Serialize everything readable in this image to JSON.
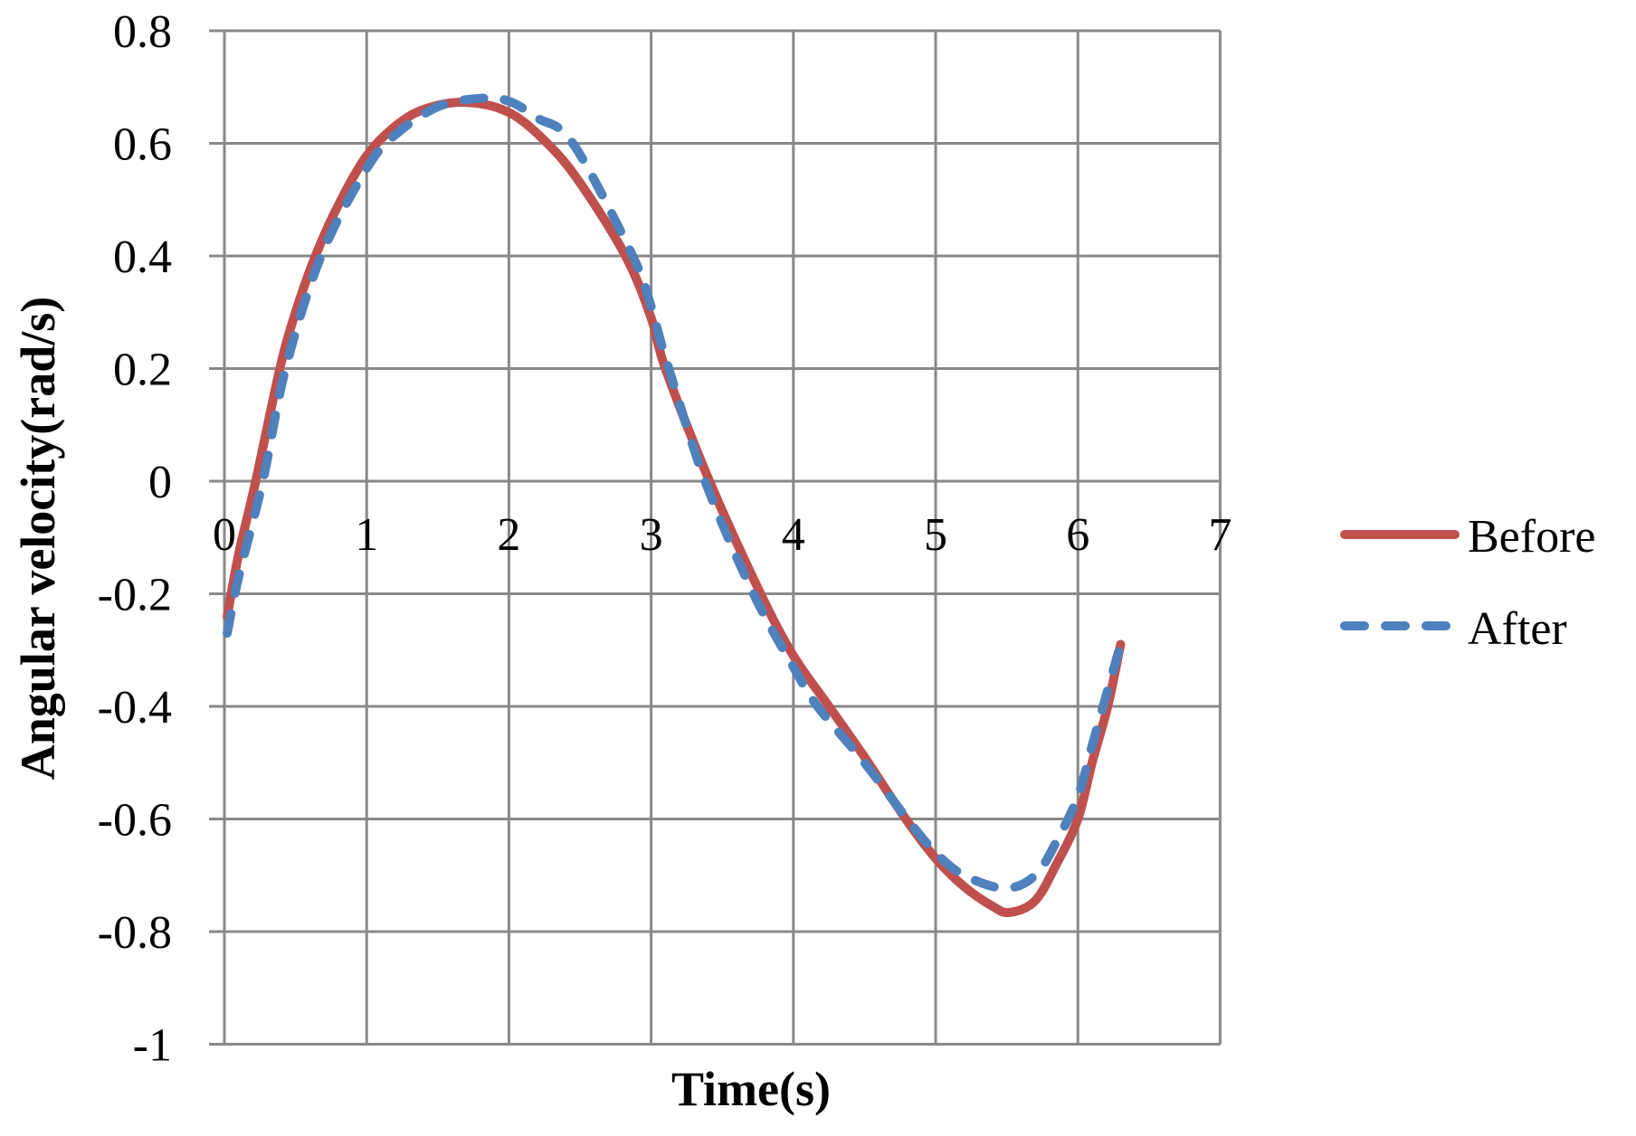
{
  "chart_data": {
    "type": "line",
    "title": "",
    "xlabel": "Time(s)",
    "ylabel": "Angular velocity(rad/s)",
    "xlim": [
      0,
      7
    ],
    "ylim": [
      -1,
      0.8
    ],
    "x_ticks": [
      0,
      1,
      2,
      3,
      4,
      5,
      6,
      7
    ],
    "y_ticks": [
      0.8,
      0.6,
      0.4,
      0.2,
      0,
      -0.2,
      -0.4,
      -0.6,
      -0.8,
      -1
    ],
    "x_tick_labels": [
      "0",
      "1",
      "2",
      "3",
      "4",
      "5",
      "6",
      "7"
    ],
    "y_tick_labels": [
      "0.8",
      "0.6",
      "0.4",
      "0.2",
      "0",
      "-0.2",
      "-0.4",
      "-0.6",
      "-0.8",
      "-1"
    ],
    "grid": true,
    "legend_position": "right",
    "series": [
      {
        "name": "Before",
        "color": "#C0504D",
        "style": "solid",
        "x": [
          0.02,
          0.1,
          0.22,
          0.39,
          0.5,
          0.64,
          0.8,
          1.0,
          1.2,
          1.4,
          1.69,
          2.0,
          2.27,
          2.5,
          2.82,
          3.0,
          3.1,
          3.41,
          3.77,
          4.0,
          4.25,
          4.5,
          4.79,
          5.0,
          5.2,
          5.4,
          5.52,
          5.7,
          5.85,
          6.0,
          6.1,
          6.21,
          6.3
        ],
        "y": [
          -0.24,
          -0.13,
          0.0,
          0.2,
          0.3,
          0.4,
          0.49,
          0.578,
          0.63,
          0.66,
          0.673,
          0.655,
          0.6,
          0.53,
          0.4,
          0.29,
          0.2,
          0.0,
          -0.2,
          -0.31,
          -0.4,
          -0.49,
          -0.6,
          -0.67,
          -0.72,
          -0.755,
          -0.766,
          -0.745,
          -0.68,
          -0.6,
          -0.5,
          -0.4,
          -0.29
        ]
      },
      {
        "name": "After",
        "color": "#4F81BD",
        "style": "dashed",
        "x": [
          0.02,
          0.1,
          0.27,
          0.43,
          0.68,
          1.0,
          1.2,
          1.5,
          1.8,
          2.0,
          2.2,
          2.45,
          2.87,
          3.0,
          3.1,
          3.38,
          3.72,
          4.0,
          4.17,
          4.5,
          4.8,
          5.0,
          5.2,
          5.49,
          5.7,
          5.85,
          6.0,
          6.1,
          6.2,
          6.3
        ],
        "y": [
          -0.27,
          -0.17,
          0.0,
          0.2,
          0.4,
          0.555,
          0.615,
          0.665,
          0.68,
          0.675,
          0.645,
          0.6,
          0.4,
          0.31,
          0.22,
          0.0,
          -0.2,
          -0.33,
          -0.4,
          -0.5,
          -0.6,
          -0.66,
          -0.7,
          -0.723,
          -0.7,
          -0.64,
          -0.56,
          -0.47,
          -0.38,
          -0.29
        ]
      }
    ]
  },
  "legend": {
    "items": [
      {
        "label": "Before"
      },
      {
        "label": "After"
      }
    ]
  }
}
